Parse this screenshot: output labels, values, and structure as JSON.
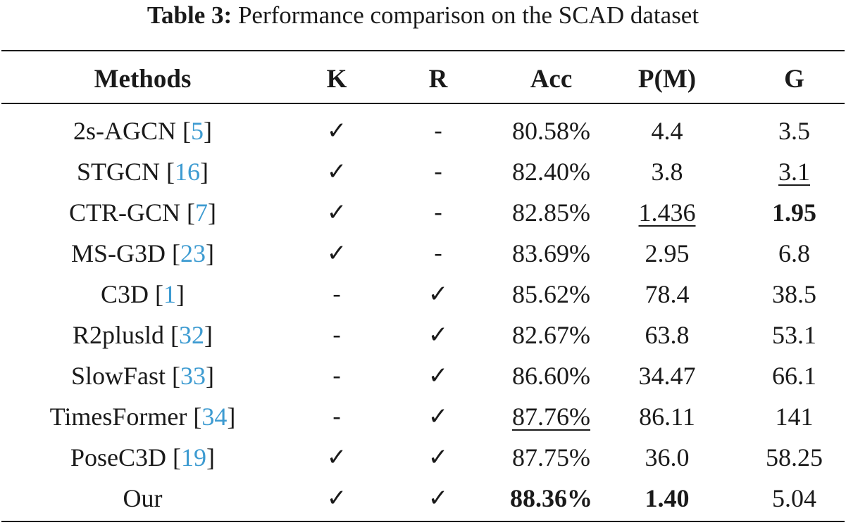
{
  "caption": {
    "label": "Table 3:",
    "text": " Performance comparison on the SCAD dataset"
  },
  "headers": {
    "methods": "Methods",
    "k": "K",
    "r": "R",
    "acc": "Acc",
    "p": "P(M)",
    "g": "G"
  },
  "rows": [
    {
      "method": "2s-AGCN ",
      "ref_open": "[",
      "ref": "5",
      "ref_close": "]",
      "k": "✓",
      "r": "-",
      "acc": "80.58%",
      "p": "4.4",
      "g": "3.5"
    },
    {
      "method": "STGCN ",
      "ref_open": "[",
      "ref": "16",
      "ref_close": "]",
      "k": "✓",
      "r": "-",
      "acc": "82.40%",
      "p": "3.8",
      "g": "3.1"
    },
    {
      "method": "CTR-GCN ",
      "ref_open": "[",
      "ref": "7",
      "ref_close": "]",
      "k": "✓",
      "r": "-",
      "acc": "82.85%",
      "p": "1.436",
      "g": "1.95"
    },
    {
      "method": "MS-G3D ",
      "ref_open": "[",
      "ref": "23",
      "ref_close": "]",
      "k": "✓",
      "r": "-",
      "acc": "83.69%",
      "p": "2.95",
      "g": "6.8"
    },
    {
      "method": "C3D ",
      "ref_open": "[",
      "ref": "1",
      "ref_close": "]",
      "k": "-",
      "r": "✓",
      "acc": "85.62%",
      "p": "78.4",
      "g": "38.5"
    },
    {
      "method": "R2plusld ",
      "ref_open": "[",
      "ref": "32",
      "ref_close": "]",
      "k": "-",
      "r": "✓",
      "acc": "82.67%",
      "p": "63.8",
      "g": "53.1"
    },
    {
      "method": "SlowFast ",
      "ref_open": "[",
      "ref": "33",
      "ref_close": "]",
      "k": "-",
      "r": "✓",
      "acc": "86.60%",
      "p": "34.47",
      "g": "66.1"
    },
    {
      "method": "TimesFormer ",
      "ref_open": "[",
      "ref": "34",
      "ref_close": "]",
      "k": "-",
      "r": "✓",
      "acc": "87.76%",
      "p": "86.11",
      "g": "141"
    },
    {
      "method": "PoseC3D ",
      "ref_open": "[",
      "ref": "19",
      "ref_close": "]",
      "k": "✓",
      "r": "✓",
      "acc": "87.75%",
      "p": "36.0",
      "g": "58.25"
    },
    {
      "method": "Our",
      "k": "✓",
      "r": "✓",
      "acc": "88.36%",
      "p": "1.40",
      "g": "5.04"
    }
  ],
  "colors": {
    "text": "#1a1a1a",
    "reference_link": "#3d9bd1"
  }
}
